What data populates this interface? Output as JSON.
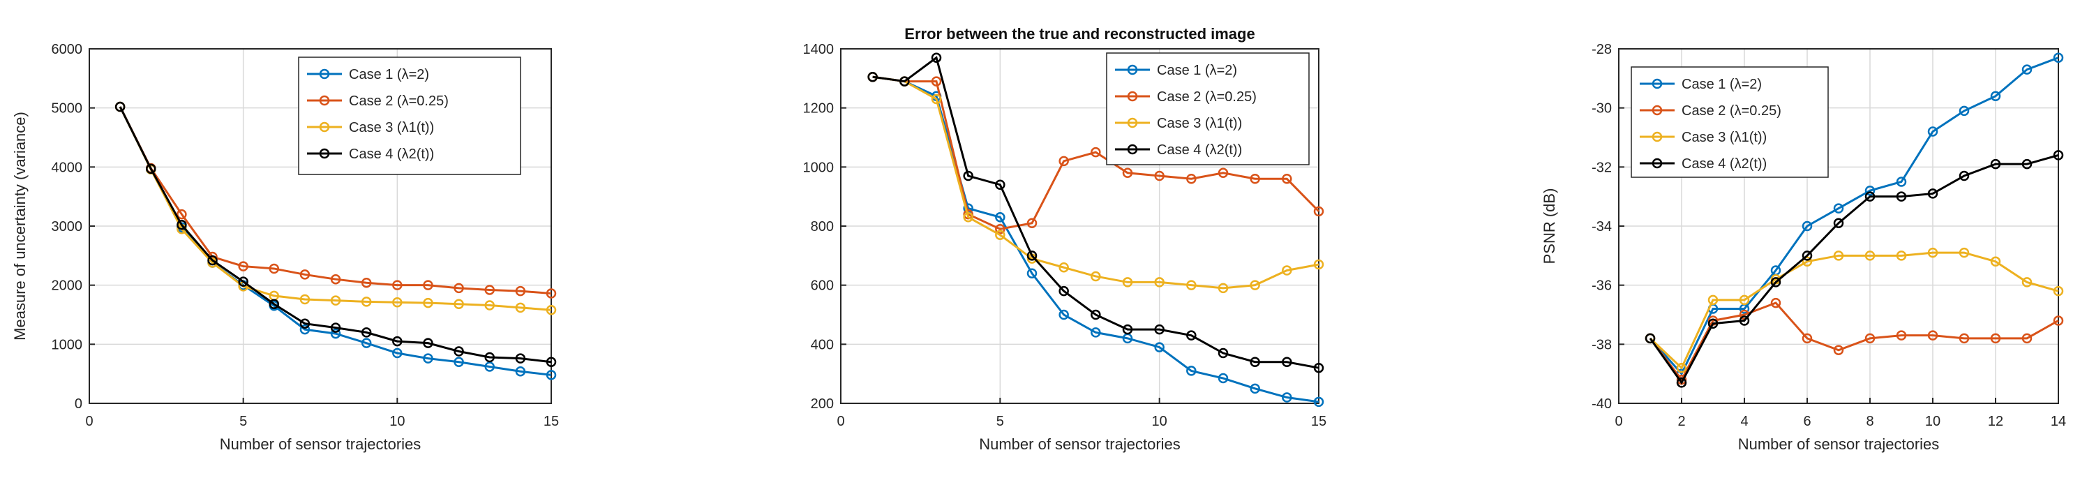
{
  "series_colors": [
    "#0072BD",
    "#D95319",
    "#EDB120",
    "#000000"
  ],
  "chart_data": [
    {
      "type": "line",
      "title": "",
      "xlabel": "Number of sensor trajectories",
      "ylabel": "Measure of uncertainty (variance)",
      "xlim": [
        0,
        15
      ],
      "ylim": [
        0,
        6000
      ],
      "xticks": [
        0,
        5,
        10,
        15
      ],
      "yticks": [
        0,
        1000,
        2000,
        3000,
        4000,
        5000,
        6000
      ],
      "grid": true,
      "legend_position": "top-right",
      "x": [
        1,
        2,
        3,
        4,
        5,
        6,
        7,
        8,
        9,
        10,
        11,
        12,
        13,
        14,
        15
      ],
      "series": [
        {
          "name": "Case 1 (λ=2)",
          "values": [
            5020,
            3960,
            2980,
            2380,
            2000,
            1650,
            1250,
            1180,
            1020,
            850,
            760,
            700,
            620,
            540,
            480
          ]
        },
        {
          "name": "Case 2 (λ=0.25)",
          "values": [
            5020,
            3980,
            3200,
            2480,
            2320,
            2280,
            2180,
            2100,
            2040,
            2000,
            2000,
            1950,
            1920,
            1900,
            1860
          ]
        },
        {
          "name": "Case 3 (λ1(t))",
          "values": [
            5020,
            3960,
            2950,
            2380,
            1980,
            1820,
            1760,
            1740,
            1720,
            1710,
            1700,
            1680,
            1660,
            1620,
            1580
          ]
        },
        {
          "name": "Case 4 (λ2(t))",
          "values": [
            5020,
            3970,
            3020,
            2420,
            2060,
            1680,
            1350,
            1280,
            1200,
            1050,
            1020,
            880,
            780,
            760,
            700
          ]
        }
      ]
    },
    {
      "type": "line",
      "title": "Error between the true and reconstructed image",
      "xlabel": "Number of sensor trajectories",
      "ylabel": "",
      "xlim": [
        0,
        15
      ],
      "ylim": [
        200,
        1400
      ],
      "xticks": [
        0,
        5,
        10,
        15
      ],
      "yticks": [
        200,
        400,
        600,
        800,
        1000,
        1200,
        1400
      ],
      "grid": true,
      "legend_position": "top-right",
      "x": [
        1,
        2,
        3,
        4,
        5,
        6,
        7,
        8,
        9,
        10,
        11,
        12,
        13,
        14,
        15
      ],
      "series": [
        {
          "name": "Case 1 (λ=2)",
          "values": [
            1305,
            1290,
            1240,
            860,
            830,
            640,
            500,
            440,
            420,
            390,
            310,
            285,
            250,
            220,
            205
          ]
        },
        {
          "name": "Case 2 (λ=0.25)",
          "values": [
            1305,
            1290,
            1290,
            840,
            790,
            810,
            1020,
            1050,
            980,
            970,
            960,
            980,
            960,
            960,
            850
          ]
        },
        {
          "name": "Case 3 (λ1(t))",
          "values": [
            1305,
            1290,
            1230,
            830,
            770,
            690,
            660,
            630,
            610,
            610,
            600,
            590,
            600,
            650,
            670
          ]
        },
        {
          "name": "Case 4 (λ2(t))",
          "values": [
            1305,
            1290,
            1370,
            970,
            940,
            700,
            580,
            500,
            450,
            450,
            430,
            370,
            340,
            340,
            320
          ]
        }
      ]
    },
    {
      "type": "line",
      "title": "",
      "xlabel": "Number of sensor trajectories",
      "ylabel": "PSNR (dB)",
      "xlim": [
        0,
        14
      ],
      "ylim": [
        -40,
        -28
      ],
      "xticks": [
        0,
        2,
        4,
        6,
        8,
        10,
        12,
        14
      ],
      "yticks": [
        -40,
        -38,
        -36,
        -34,
        -32,
        -30,
        -28
      ],
      "grid": true,
      "legend_position": "top-left",
      "x": [
        1,
        2,
        3,
        4,
        5,
        6,
        7,
        8,
        9,
        10,
        11,
        12,
        13,
        14
      ],
      "series": [
        {
          "name": "Case 1 (λ=2)",
          "values": [
            -37.8,
            -39.0,
            -36.8,
            -36.8,
            -35.5,
            -34.0,
            -33.4,
            -32.8,
            -32.5,
            -30.8,
            -30.1,
            -29.6,
            -28.7,
            -28.3
          ]
        },
        {
          "name": "Case 2 (λ=0.25)",
          "values": [
            -37.8,
            -39.2,
            -37.2,
            -37.0,
            -36.6,
            -37.8,
            -38.2,
            -37.8,
            -37.7,
            -37.7,
            -37.8,
            -37.8,
            -37.8,
            -37.2
          ]
        },
        {
          "name": "Case 3 (λ1(t))",
          "values": [
            -37.8,
            -38.8,
            -36.5,
            -36.5,
            -35.8,
            -35.2,
            -35.0,
            -35.0,
            -35.0,
            -34.9,
            -34.9,
            -35.2,
            -35.9,
            -36.2
          ]
        },
        {
          "name": "Case 4 (λ2(t))",
          "values": [
            -37.8,
            -39.3,
            -37.3,
            -37.2,
            -35.9,
            -35.0,
            -33.9,
            -33.0,
            -33.0,
            -32.9,
            -32.3,
            -31.9,
            -31.9,
            -31.6
          ]
        }
      ]
    }
  ]
}
